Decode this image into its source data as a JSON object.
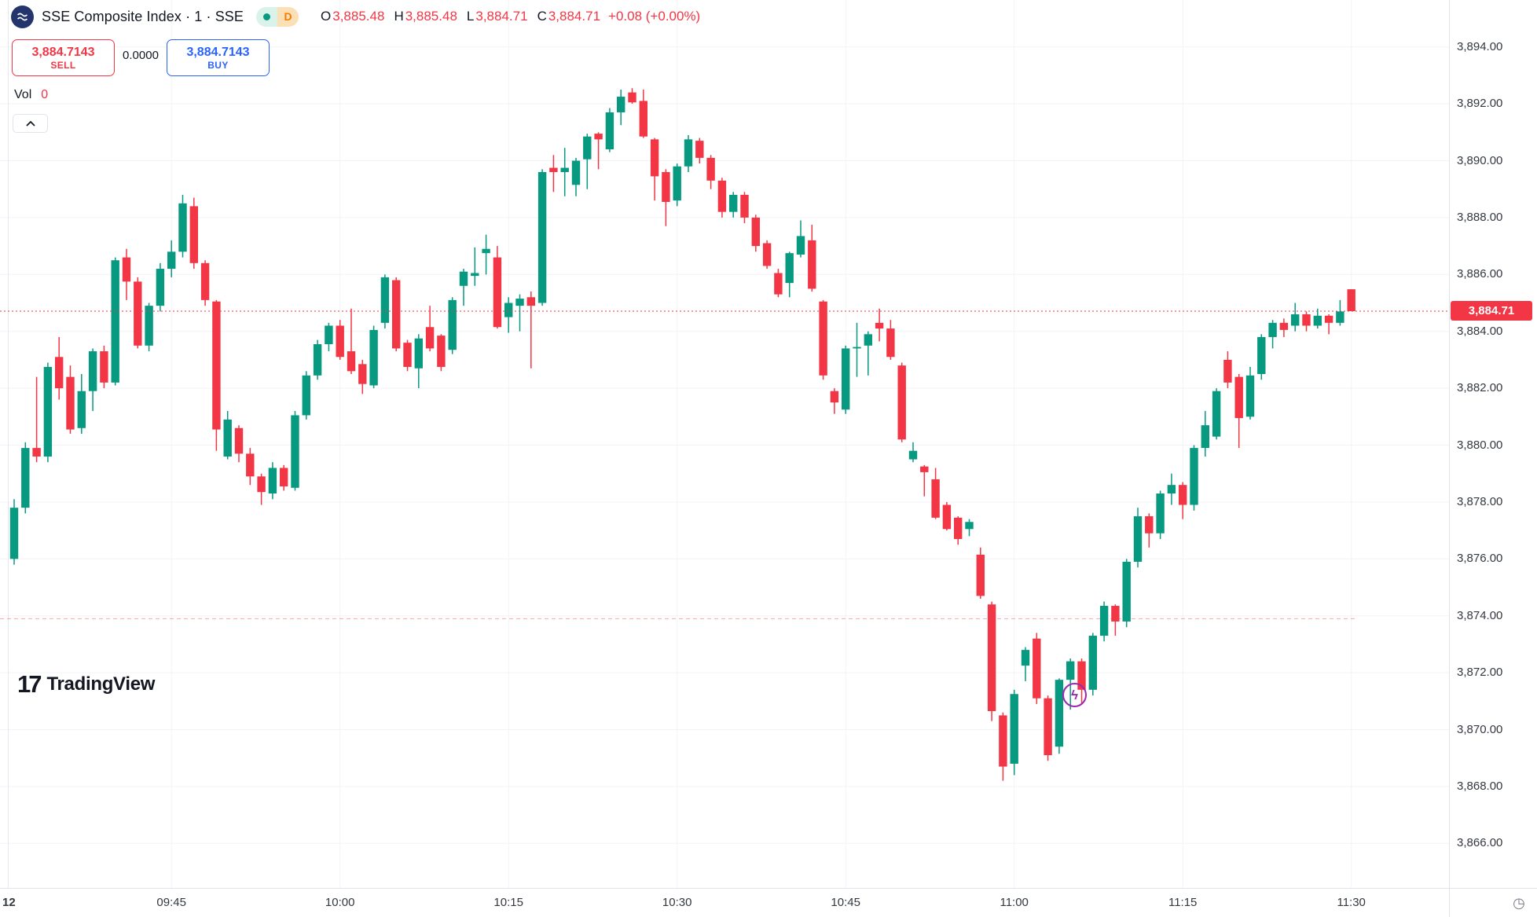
{
  "header": {
    "symbol_title": "SSE Composite Index · 1 · SSE",
    "delayed_badge": "D",
    "ohlc": {
      "o_label": "O",
      "o_value": "3,885.48",
      "h_label": "H",
      "h_value": "3,885.48",
      "l_label": "L",
      "l_value": "3,884.71",
      "c_label": "C",
      "c_value": "3,884.71",
      "change": "+0.08 (+0.00%)"
    }
  },
  "trade_panel": {
    "sell_price": "3,884.7143",
    "sell_label": "SELL",
    "spread": "0.0000",
    "buy_price": "3,884.7143",
    "buy_label": "BUY"
  },
  "volume": {
    "label": "Vol",
    "value": "0"
  },
  "collapse_button": {
    "icon": "chevron-up"
  },
  "watermark": {
    "mark": "17",
    "text": "TradingView"
  },
  "price_axis": {
    "last_price": "3,884.71",
    "tick_values": [
      3894,
      3892,
      3890,
      3888,
      3886,
      3884,
      3882,
      3880,
      3878,
      3876,
      3874,
      3872,
      3870,
      3868,
      3866
    ],
    "tick_labels": [
      "3,894.00",
      "3,892.00",
      "3,890.00",
      "3,888.00",
      "3,886.00",
      "3,884.00",
      "3,882.00",
      "3,880.00",
      "3,878.00",
      "3,876.00",
      "3,874.00",
      "3,872.00",
      "3,870.00",
      "3,868.00",
      "3,866.00"
    ]
  },
  "time_axis": {
    "session_label": "12",
    "ticks": [
      {
        "text": "09:45",
        "idx": 14
      },
      {
        "text": "10:00",
        "idx": 29
      },
      {
        "text": "10:15",
        "idx": 44
      },
      {
        "text": "10:30",
        "idx": 59
      },
      {
        "text": "10:45",
        "idx": 74
      },
      {
        "text": "11:00",
        "idx": 89
      },
      {
        "text": "11:15",
        "idx": 104
      },
      {
        "text": "11:30",
        "idx": 119
      }
    ]
  },
  "colors": {
    "up": "#089981",
    "down": "#f23645",
    "buy_blue": "#2962ff",
    "delayed_orange": "#f57c00",
    "grid": "#f2f3f7",
    "session_grid": "#e6e8ef",
    "flash_purple": "#9c27b0",
    "last_price_red": "#f23645"
  },
  "chart_data": {
    "type": "candlestick",
    "title": "SSE Composite Index 1-minute",
    "ylim": [
      3864.4,
      3895.6
    ],
    "grid": true,
    "last_price": 3884.71,
    "dashed_level": 3873.9,
    "columns": [
      "time",
      "open",
      "high",
      "low",
      "close"
    ],
    "candles": [
      [
        "09:31",
        3876.0,
        3878.1,
        3875.8,
        3877.8
      ],
      [
        "09:32",
        3877.8,
        3880.1,
        3877.6,
        3879.9
      ],
      [
        "09:33",
        3879.9,
        3882.4,
        3879.4,
        3879.6
      ],
      [
        "09:34",
        3879.6,
        3882.9,
        3879.4,
        3882.75
      ],
      [
        "09:35",
        3883.1,
        3883.8,
        3881.6,
        3882.0
      ],
      [
        "09:36",
        3882.4,
        3882.8,
        3880.4,
        3880.55
      ],
      [
        "09:37",
        3880.6,
        3882.5,
        3880.4,
        3881.9
      ],
      [
        "09:38",
        3881.9,
        3883.4,
        3881.2,
        3883.3
      ],
      [
        "09:39",
        3883.3,
        3883.5,
        3882.0,
        3882.2
      ],
      [
        "09:40",
        3882.2,
        3886.6,
        3882.1,
        3886.5
      ],
      [
        "09:41",
        3886.6,
        3886.9,
        3885.1,
        3885.75
      ],
      [
        "09:42",
        3885.75,
        3885.9,
        3883.4,
        3883.5
      ],
      [
        "09:43",
        3883.5,
        3885.0,
        3883.3,
        3884.9
      ],
      [
        "09:44",
        3884.9,
        3886.4,
        3884.7,
        3886.2
      ],
      [
        "09:45",
        3886.2,
        3887.2,
        3885.9,
        3886.8
      ],
      [
        "09:46",
        3886.8,
        3888.8,
        3886.6,
        3888.5
      ],
      [
        "09:47",
        3888.4,
        3888.7,
        3886.2,
        3886.4
      ],
      [
        "09:48",
        3886.4,
        3886.5,
        3884.9,
        3885.1
      ],
      [
        "09:49",
        3885.05,
        3885.1,
        3879.8,
        3880.55
      ],
      [
        "09:50",
        3879.6,
        3881.2,
        3879.5,
        3880.9
      ],
      [
        "09:51",
        3880.6,
        3880.7,
        3879.4,
        3879.7
      ],
      [
        "09:52",
        3879.7,
        3879.9,
        3878.6,
        3878.9
      ],
      [
        "09:53",
        3878.9,
        3879.0,
        3877.9,
        3878.35
      ],
      [
        "09:54",
        3878.3,
        3879.4,
        3878.1,
        3879.2
      ],
      [
        "09:55",
        3879.2,
        3879.3,
        3878.4,
        3878.55
      ],
      [
        "09:56",
        3878.5,
        3881.2,
        3878.4,
        3881.05
      ],
      [
        "09:57",
        3881.05,
        3882.6,
        3880.9,
        3882.45
      ],
      [
        "09:58",
        3882.45,
        3883.7,
        3882.3,
        3883.55
      ],
      [
        "09:59",
        3883.55,
        3884.3,
        3883.3,
        3884.2
      ],
      [
        "10:00",
        3884.2,
        3884.4,
        3883.0,
        3883.1
      ],
      [
        "10:01",
        3883.3,
        3884.8,
        3882.5,
        3882.6
      ],
      [
        "10:02",
        3882.85,
        3883.0,
        3881.8,
        3882.15
      ],
      [
        "10:03",
        3882.1,
        3884.2,
        3882.0,
        3884.05
      ],
      [
        "10:04",
        3884.3,
        3886.0,
        3884.1,
        3885.9
      ],
      [
        "10:05",
        3885.8,
        3885.9,
        3883.3,
        3883.4
      ],
      [
        "10:06",
        3883.6,
        3883.7,
        3882.6,
        3882.75
      ],
      [
        "10:07",
        3882.7,
        3883.9,
        3882.0,
        3883.75
      ],
      [
        "10:08",
        3884.15,
        3884.9,
        3883.3,
        3883.4
      ],
      [
        "10:09",
        3883.85,
        3883.9,
        3882.6,
        3882.75
      ],
      [
        "10:10",
        3883.35,
        3885.2,
        3883.2,
        3885.1
      ],
      [
        "10:11",
        3885.6,
        3886.2,
        3884.9,
        3886.1
      ],
      [
        "10:12",
        3885.95,
        3886.95,
        3885.6,
        3886.05
      ],
      [
        "10:13",
        3886.75,
        3887.4,
        3886.0,
        3886.9
      ],
      [
        "10:14",
        3886.6,
        3887.0,
        3884.1,
        3884.15
      ],
      [
        "10:15",
        3884.5,
        3885.2,
        3883.95,
        3885.0
      ],
      [
        "10:16",
        3884.9,
        3885.3,
        3884.0,
        3885.15
      ],
      [
        "10:17",
        3885.2,
        3885.4,
        3882.7,
        3884.9
      ],
      [
        "10:18",
        3885.0,
        3889.7,
        3884.9,
        3889.6
      ],
      [
        "10:19",
        3889.75,
        3890.2,
        3888.9,
        3889.6
      ],
      [
        "10:20",
        3889.6,
        3890.45,
        3888.75,
        3889.75
      ],
      [
        "10:21",
        3889.15,
        3890.1,
        3888.75,
        3890.0
      ],
      [
        "10:22",
        3890.05,
        3890.95,
        3889.0,
        3890.85
      ],
      [
        "10:23",
        3890.95,
        3891.0,
        3889.7,
        3890.75
      ],
      [
        "10:24",
        3890.4,
        3891.85,
        3890.3,
        3891.7
      ],
      [
        "10:25",
        3891.7,
        3892.5,
        3891.25,
        3892.25
      ],
      [
        "10:26",
        3892.4,
        3892.55,
        3892.0,
        3892.05
      ],
      [
        "10:27",
        3892.1,
        3892.5,
        3890.8,
        3890.85
      ],
      [
        "10:28",
        3890.75,
        3890.8,
        3888.6,
        3889.45
      ],
      [
        "10:29",
        3889.6,
        3889.7,
        3887.7,
        3888.55
      ],
      [
        "10:30",
        3888.6,
        3889.9,
        3888.4,
        3889.8
      ],
      [
        "10:31",
        3889.8,
        3890.9,
        3889.6,
        3890.75
      ],
      [
        "10:32",
        3890.7,
        3890.8,
        3889.9,
        3890.1
      ],
      [
        "10:33",
        3890.1,
        3890.2,
        3889.0,
        3889.3
      ],
      [
        "10:34",
        3889.3,
        3889.4,
        3888.0,
        3888.2
      ],
      [
        "10:35",
        3888.2,
        3888.9,
        3888.0,
        3888.8
      ],
      [
        "10:36",
        3888.8,
        3888.9,
        3887.8,
        3888.0
      ],
      [
        "10:37",
        3888.0,
        3888.1,
        3886.8,
        3887.0
      ],
      [
        "10:38",
        3887.1,
        3887.2,
        3886.2,
        3886.3
      ],
      [
        "10:39",
        3886.05,
        3886.2,
        3885.2,
        3885.3
      ],
      [
        "10:40",
        3885.7,
        3886.8,
        3885.2,
        3886.75
      ],
      [
        "10:41",
        3886.7,
        3887.9,
        3886.6,
        3887.35
      ],
      [
        "10:42",
        3887.2,
        3887.75,
        3885.4,
        3885.5
      ],
      [
        "10:43",
        3885.05,
        3885.1,
        3882.3,
        3882.45
      ],
      [
        "10:44",
        3881.9,
        3882.0,
        3881.1,
        3881.5
      ],
      [
        "10:45",
        3881.25,
        3883.5,
        3881.1,
        3883.4
      ],
      [
        "10:46",
        3883.4,
        3884.3,
        3882.4,
        3883.45
      ],
      [
        "10:47",
        3883.5,
        3884.0,
        3882.45,
        3883.9
      ],
      [
        "10:48",
        3884.3,
        3884.8,
        3883.65,
        3884.1
      ],
      [
        "10:49",
        3884.1,
        3884.4,
        3883.0,
        3883.1
      ],
      [
        "10:50",
        3882.8,
        3882.9,
        3880.1,
        3880.2
      ],
      [
        "10:51",
        3879.5,
        3880.1,
        3879.4,
        3879.8
      ],
      [
        "10:52",
        3879.25,
        3879.3,
        3878.2,
        3879.05
      ],
      [
        "10:53",
        3878.8,
        3879.2,
        3877.4,
        3877.45
      ],
      [
        "10:54",
        3877.9,
        3878.0,
        3877.0,
        3877.05
      ],
      [
        "10:55",
        3877.45,
        3877.5,
        3876.5,
        3876.7
      ],
      [
        "10:56",
        3877.05,
        3877.4,
        3876.8,
        3877.3
      ],
      [
        "10:57",
        3876.15,
        3876.4,
        3874.6,
        3874.7
      ],
      [
        "10:58",
        3874.4,
        3874.5,
        3870.3,
        3870.65
      ],
      [
        "10:59",
        3870.5,
        3870.6,
        3868.2,
        3868.7
      ],
      [
        "11:00",
        3868.8,
        3871.4,
        3868.4,
        3871.25
      ],
      [
        "11:01",
        3872.25,
        3872.9,
        3871.7,
        3872.8
      ],
      [
        "11:02",
        3873.2,
        3873.4,
        3870.9,
        3871.1
      ],
      [
        "11:03",
        3871.1,
        3871.2,
        3868.9,
        3869.1
      ],
      [
        "11:04",
        3869.4,
        3871.8,
        3869.15,
        3871.75
      ],
      [
        "11:05",
        3871.75,
        3872.5,
        3870.7,
        3872.4
      ],
      [
        "11:06",
        3872.4,
        3872.5,
        3870.9,
        3871.4
      ],
      [
        "11:07",
        3871.4,
        3873.4,
        3871.2,
        3873.3
      ],
      [
        "11:08",
        3873.3,
        3874.5,
        3873.1,
        3874.35
      ],
      [
        "11:09",
        3874.35,
        3874.4,
        3873.3,
        3873.8
      ],
      [
        "11:10",
        3873.8,
        3876.0,
        3873.6,
        3875.9
      ],
      [
        "11:11",
        3875.9,
        3877.8,
        3875.7,
        3877.5
      ],
      [
        "11:12",
        3877.5,
        3877.6,
        3876.4,
        3876.9
      ],
      [
        "11:13",
        3876.9,
        3878.4,
        3876.7,
        3878.3
      ],
      [
        "11:14",
        3878.3,
        3879.0,
        3877.9,
        3878.6
      ],
      [
        "11:15",
        3878.6,
        3878.7,
        3877.4,
        3877.9
      ],
      [
        "11:16",
        3877.9,
        3880.0,
        3877.7,
        3879.9
      ],
      [
        "11:17",
        3879.9,
        3881.2,
        3879.6,
        3880.7
      ],
      [
        "11:18",
        3880.3,
        3882.0,
        3880.2,
        3881.9
      ],
      [
        "11:19",
        3883.0,
        3883.3,
        3882.0,
        3882.2
      ],
      [
        "11:20",
        3882.4,
        3882.5,
        3879.9,
        3880.95
      ],
      [
        "11:21",
        3881.0,
        3882.75,
        3880.9,
        3882.45
      ],
      [
        "11:22",
        3882.5,
        3883.9,
        3882.3,
        3883.8
      ],
      [
        "11:23",
        3883.8,
        3884.4,
        3883.4,
        3884.3
      ],
      [
        "11:24",
        3884.3,
        3884.45,
        3883.8,
        3884.05
      ],
      [
        "11:25",
        3884.2,
        3885.0,
        3884.0,
        3884.6
      ],
      [
        "11:26",
        3884.6,
        3884.7,
        3884.0,
        3884.2
      ],
      [
        "11:27",
        3884.2,
        3884.8,
        3884.1,
        3884.55
      ],
      [
        "11:28",
        3884.55,
        3884.6,
        3883.9,
        3884.3
      ],
      [
        "11:29",
        3884.3,
        3885.1,
        3884.2,
        3884.7
      ],
      [
        "11:30",
        3885.48,
        3885.48,
        3884.71,
        3884.71
      ]
    ]
  }
}
